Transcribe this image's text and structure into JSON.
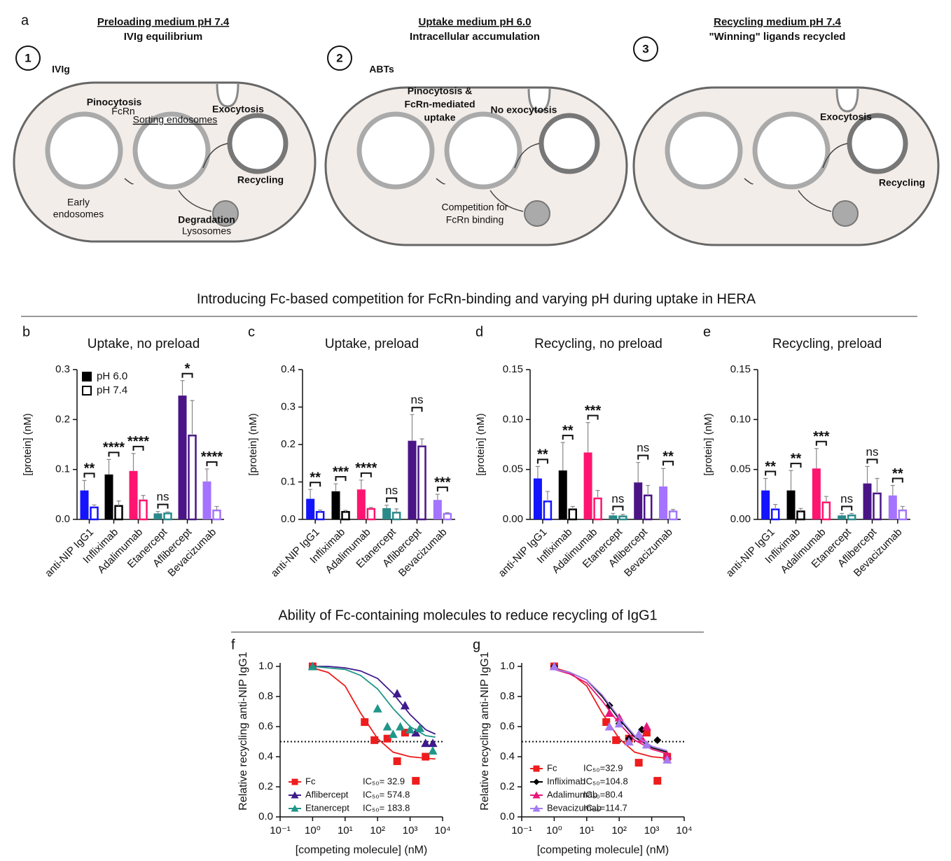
{
  "diagram": {
    "label": "a",
    "cells": [
      {
        "step": "1",
        "title": "Preloading medium pH  7.4",
        "subtitle": "IVIg equilibrium",
        "labels": [
          "IVIg",
          "Pinocytosis",
          "FcRn",
          "Sorting endosomes",
          "Exocytosis",
          "Recycling",
          "Early",
          "endosomes",
          "Degradation",
          "Lysosomes"
        ]
      },
      {
        "step": "2",
        "title": "Uptake medium pH 6.0",
        "subtitle": "Intracellular accumulation",
        "labels": [
          "ABTs",
          "Pinocytosis &",
          "FcRn-mediated",
          "uptake",
          "No exocytosis",
          "Competition for",
          "FcRn binding"
        ]
      },
      {
        "step": "3",
        "title": "Recycling medium pH 7.4",
        "subtitle": "\"Winning\" ligands recycled",
        "labels": [
          "Exocytosis",
          "Recycling"
        ]
      }
    ]
  },
  "headings": [
    "Introducing Fc-based competition for FcRn-binding and varying pH during uptake in HERA",
    "Ability of Fc-containing molecules to reduce recycling of IgG1"
  ],
  "chart_data": [
    {
      "type": "bar",
      "label": "b",
      "title": "Uptake, no preload",
      "y_label": "[protein] (nM)",
      "categories": [
        "anti-NIP IgG1",
        "Infliximab",
        "Adalimumab",
        "Etanercept",
        "Aflibercept",
        "Bevacizumab"
      ],
      "category_colors": [
        "#1414ff",
        "#000000",
        "#ff1470",
        "#2a8a8a",
        "#4a1486",
        "#a473ff"
      ],
      "ylim": [
        0,
        0.3
      ],
      "yticks": [
        {
          "value": 0,
          "label": "0.0"
        },
        {
          "value": 0.1,
          "label": "0.1"
        },
        {
          "value": 0.2,
          "label": "0.2"
        },
        {
          "value": 0.3,
          "label": "0.3"
        }
      ],
      "legend": "upper left",
      "series": [
        {
          "name": "pH 6.0",
          "color": "#000000",
          "filled": true,
          "values": [
            0.058,
            0.09,
            0.097,
            0.012,
            0.248,
            0.076
          ],
          "errors": [
            0.02,
            0.03,
            0.035,
            0.004,
            0.03,
            0.025
          ]
        },
        {
          "name": "pH 7.4",
          "color": "#000000",
          "filled": false,
          "values": [
            0.024,
            0.027,
            0.038,
            0.012,
            0.168,
            0.018
          ],
          "errors": [
            0.005,
            0.01,
            0.01,
            0.003,
            0.07,
            0.008
          ]
        }
      ],
      "annotations": [
        "**",
        "****",
        "****",
        "ns",
        "*",
        "****"
      ]
    },
    {
      "type": "bar",
      "label": "c",
      "title": "Uptake, preload",
      "y_label": "[protein] (nM)",
      "categories": [
        "anti-NIP IgG1",
        "Infliximab",
        "Adalimumab",
        "Etanercept",
        "Aflibercept",
        "Bevacizumab"
      ],
      "category_colors": [
        "#1414ff",
        "#000000",
        "#ff1470",
        "#2a8a8a",
        "#4a1486",
        "#a473ff"
      ],
      "ylim": [
        0,
        0.4
      ],
      "yticks": [
        {
          "value": 0,
          "label": "0.0"
        },
        {
          "value": 0.1,
          "label": "0.1"
        },
        {
          "value": 0.2,
          "label": "0.2"
        },
        {
          "value": 0.3,
          "label": "0.3"
        },
        {
          "value": 0.4,
          "label": "0.4"
        }
      ],
      "series": [
        {
          "name": "pH 6.0",
          "color": "#000000",
          "filled": true,
          "values": [
            0.055,
            0.075,
            0.08,
            0.03,
            0.21,
            0.052
          ],
          "errors": [
            0.025,
            0.02,
            0.025,
            0.008,
            0.07,
            0.015
          ]
        },
        {
          "name": "pH 7.4",
          "color": "#000000",
          "filled": false,
          "values": [
            0.02,
            0.02,
            0.028,
            0.018,
            0.195,
            0.015
          ],
          "errors": [
            0.005,
            0.004,
            0.004,
            0.01,
            0.02,
            0.003
          ]
        }
      ],
      "annotations": [
        "**",
        "***",
        "****",
        "ns",
        "ns",
        "***"
      ]
    },
    {
      "type": "bar",
      "label": "d",
      "title": "Recycling, no preload",
      "y_label": "[protein] (nM)",
      "categories": [
        "anti-NIP IgG1",
        "Infliximab",
        "Adalimumab",
        "Etanercept",
        "Aflibercept",
        "Bevacizumab"
      ],
      "category_colors": [
        "#1414ff",
        "#000000",
        "#ff1470",
        "#2a8a8a",
        "#4a1486",
        "#a473ff"
      ],
      "ylim": [
        0,
        0.15
      ],
      "yticks": [
        {
          "value": 0,
          "label": "0.00"
        },
        {
          "value": 0.05,
          "label": "0.05"
        },
        {
          "value": 0.1,
          "label": "0.10"
        },
        {
          "value": 0.15,
          "label": "0.15"
        }
      ],
      "series": [
        {
          "name": "pH 6.0",
          "color": "#000000",
          "filled": true,
          "values": [
            0.041,
            0.049,
            0.067,
            0.004,
            0.037,
            0.033
          ],
          "errors": [
            0.012,
            0.028,
            0.03,
            0.002,
            0.02,
            0.018
          ]
        },
        {
          "name": "pH 7.4",
          "color": "#000000",
          "filled": false,
          "values": [
            0.018,
            0.01,
            0.021,
            0.003,
            0.024,
            0.008
          ],
          "errors": [
            0.01,
            0.003,
            0.008,
            0.002,
            0.01,
            0.002
          ]
        }
      ],
      "annotations": [
        "**",
        "**",
        "***",
        "ns",
        "ns",
        "**"
      ]
    },
    {
      "type": "bar",
      "label": "e",
      "title": "Recycling, preload",
      "y_label": "[protein] (nM)",
      "categories": [
        "anti-NIP IgG1",
        "Infliximab",
        "Adalimumab",
        "Etanercept",
        "Aflibercept",
        "Bevacizumab"
      ],
      "category_colors": [
        "#1414ff",
        "#000000",
        "#ff1470",
        "#2a8a8a",
        "#4a1486",
        "#a473ff"
      ],
      "ylim": [
        0,
        0.15
      ],
      "yticks": [
        {
          "value": 0,
          "label": "0.00"
        },
        {
          "value": 0.05,
          "label": "0.05"
        },
        {
          "value": 0.1,
          "label": "0.10"
        },
        {
          "value": 0.15,
          "label": "0.15"
        }
      ],
      "series": [
        {
          "name": "pH 6.0",
          "color": "#000000",
          "filled": true,
          "values": [
            0.029,
            0.029,
            0.051,
            0.004,
            0.036,
            0.024
          ],
          "errors": [
            0.012,
            0.02,
            0.02,
            0.002,
            0.017,
            0.01
          ]
        },
        {
          "name": "pH 7.4",
          "color": "#000000",
          "filled": false,
          "values": [
            0.01,
            0.008,
            0.017,
            0.004,
            0.026,
            0.009
          ],
          "errors": [
            0.005,
            0.003,
            0.006,
            0.002,
            0.015,
            0.004
          ]
        }
      ],
      "annotations": [
        "**",
        "**",
        "***",
        "ns",
        "ns",
        "**"
      ]
    },
    {
      "type": "scatter",
      "label": "f",
      "y_label": "Relative recycling anti-NIP IgG1",
      "x_label": "[competing molecule] (nM)",
      "xscale": "log",
      "xlim": [
        0.1,
        10000
      ],
      "xticks": [
        {
          "value": 0.1,
          "label": "10⁻¹"
        },
        {
          "value": 1,
          "label": "10⁰"
        },
        {
          "value": 10,
          "label": "10¹"
        },
        {
          "value": 100,
          "label": "10²"
        },
        {
          "value": 1000,
          "label": "10³"
        },
        {
          "value": 10000,
          "label": "10⁴"
        }
      ],
      "ylim": [
        0,
        1
      ],
      "yticks": [
        {
          "value": 0,
          "label": "0.0"
        },
        {
          "value": 0.2,
          "label": "0.2"
        },
        {
          "value": 0.4,
          "label": "0.4"
        },
        {
          "value": 0.6,
          "label": "0.6"
        },
        {
          "value": 0.8,
          "label": "0.8"
        },
        {
          "value": 1,
          "label": "1.0"
        }
      ],
      "hline": 0.5,
      "legend": "lower left",
      "series": [
        {
          "name": "Fc",
          "color": "#ee1c1c",
          "marker": "square",
          "ic50_label": "IC₅₀= 32.9",
          "x": [
            1,
            40,
            80,
            200,
            400,
            700,
            1500,
            3000
          ],
          "values": [
            1.0,
            0.63,
            0.51,
            0.52,
            0.37,
            0.56,
            0.24,
            0.4
          ],
          "fit": {
            "x": [
              1,
              3,
              10,
              30,
              100,
              300,
              1000,
              3000,
              6000
            ],
            "values": [
              0.99,
              0.96,
              0.87,
              0.69,
              0.52,
              0.43,
              0.4,
              0.39,
              0.385
            ]
          }
        },
        {
          "name": "Aflibercept",
          "color": "#3f1a8c",
          "marker": "triangle",
          "ic50_label": "IC₅₀= 574.8",
          "x": [
            1,
            400,
            700,
            1500,
            3000,
            5000
          ],
          "values": [
            1.0,
            0.82,
            0.74,
            0.56,
            0.49,
            0.49
          ],
          "fit": {
            "x": [
              1,
              3,
              10,
              30,
              100,
              300,
              1000,
              3000,
              6000
            ],
            "values": [
              1.0,
              1.0,
              0.99,
              0.97,
              0.92,
              0.82,
              0.68,
              0.58,
              0.55
            ]
          }
        },
        {
          "name": "Etanercept",
          "color": "#1f9688",
          "marker": "triangle",
          "ic50_label": "IC₅₀= 183.8",
          "x": [
            1,
            100,
            200,
            300,
            500,
            1000,
            2000,
            5000
          ],
          "values": [
            1.0,
            0.72,
            0.6,
            0.55,
            0.6,
            0.58,
            0.59,
            0.44
          ],
          "fit": {
            "x": [
              1,
              3,
              10,
              30,
              100,
              300,
              1000,
              3000,
              6000
            ],
            "values": [
              1.0,
              0.99,
              0.98,
              0.94,
              0.85,
              0.72,
              0.6,
              0.54,
              0.53
            ]
          }
        }
      ]
    },
    {
      "type": "scatter",
      "label": "g",
      "y_label": "Relative recycling anti-NIP IgG1",
      "x_label": "[competing molecule] (nM)",
      "xscale": "log",
      "xlim": [
        0.1,
        10000
      ],
      "xticks": [
        {
          "value": 0.1,
          "label": "10⁻¹"
        },
        {
          "value": 1,
          "label": "10⁰"
        },
        {
          "value": 10,
          "label": "10¹"
        },
        {
          "value": 100,
          "label": "10²"
        },
        {
          "value": 1000,
          "label": "10³"
        },
        {
          "value": 10000,
          "label": "10⁴"
        }
      ],
      "ylim": [
        0,
        1
      ],
      "yticks": [
        {
          "value": 0,
          "label": "0.0"
        },
        {
          "value": 0.2,
          "label": "0.2"
        },
        {
          "value": 0.4,
          "label": "0.4"
        },
        {
          "value": 0.6,
          "label": "0.6"
        },
        {
          "value": 0.8,
          "label": "0.8"
        },
        {
          "value": 1,
          "label": "1.0"
        }
      ],
      "hline": 0.5,
      "legend": "lower left",
      "series": [
        {
          "name": "Fc",
          "color": "#ee1c1c",
          "marker": "square",
          "ic50_label": "IC₅₀=32.9",
          "x": [
            1,
            40,
            80,
            200,
            400,
            700,
            1500,
            3000
          ],
          "values": [
            1.0,
            0.63,
            0.51,
            0.52,
            0.36,
            0.56,
            0.24,
            0.4
          ],
          "fit": {
            "x": [
              1,
              3,
              10,
              30,
              100,
              300,
              1000,
              3000
            ],
            "values": [
              0.99,
              0.96,
              0.87,
              0.69,
              0.52,
              0.43,
              0.4,
              0.39
            ]
          }
        },
        {
          "name": "Infliximab",
          "color": "#000000",
          "marker": "diamond",
          "ic50_label": "IC₅₀=104.8",
          "x": [
            1,
            50,
            100,
            200,
            500,
            1500,
            3000
          ],
          "values": [
            1.0,
            0.74,
            0.62,
            0.52,
            0.58,
            0.51,
            0.4
          ],
          "fit": {
            "x": [
              1,
              3,
              10,
              30,
              100,
              300,
              1000,
              3000
            ],
            "values": [
              0.98,
              0.96,
              0.91,
              0.8,
              0.65,
              0.53,
              0.46,
              0.43
            ]
          }
        },
        {
          "name": "Adalimumab",
          "color": "#e8177a",
          "marker": "triangle",
          "ic50_label": "IC₅₀=80.4",
          "x": [
            1,
            50,
            100,
            200,
            500,
            700,
            3000
          ],
          "values": [
            1.0,
            0.69,
            0.66,
            0.5,
            0.52,
            0.6,
            0.41
          ],
          "fit": {
            "x": [
              1,
              3,
              10,
              30,
              100,
              300,
              1000,
              3000
            ],
            "values": [
              0.98,
              0.95,
              0.89,
              0.77,
              0.62,
              0.51,
              0.45,
              0.42
            ]
          }
        },
        {
          "name": "Bevacizumab",
          "color": "#a37cf0",
          "marker": "triangle",
          "ic50_label": "IC₅₀=114.7",
          "x": [
            1,
            50,
            100,
            200,
            400,
            700,
            3000
          ],
          "values": [
            1.0,
            0.6,
            0.62,
            0.5,
            0.55,
            0.48,
            0.38
          ],
          "fit": {
            "x": [
              1,
              3,
              10,
              30,
              100,
              300,
              1000,
              3000
            ],
            "values": [
              0.98,
              0.96,
              0.91,
              0.81,
              0.66,
              0.54,
              0.47,
              0.44
            ]
          }
        }
      ]
    }
  ]
}
